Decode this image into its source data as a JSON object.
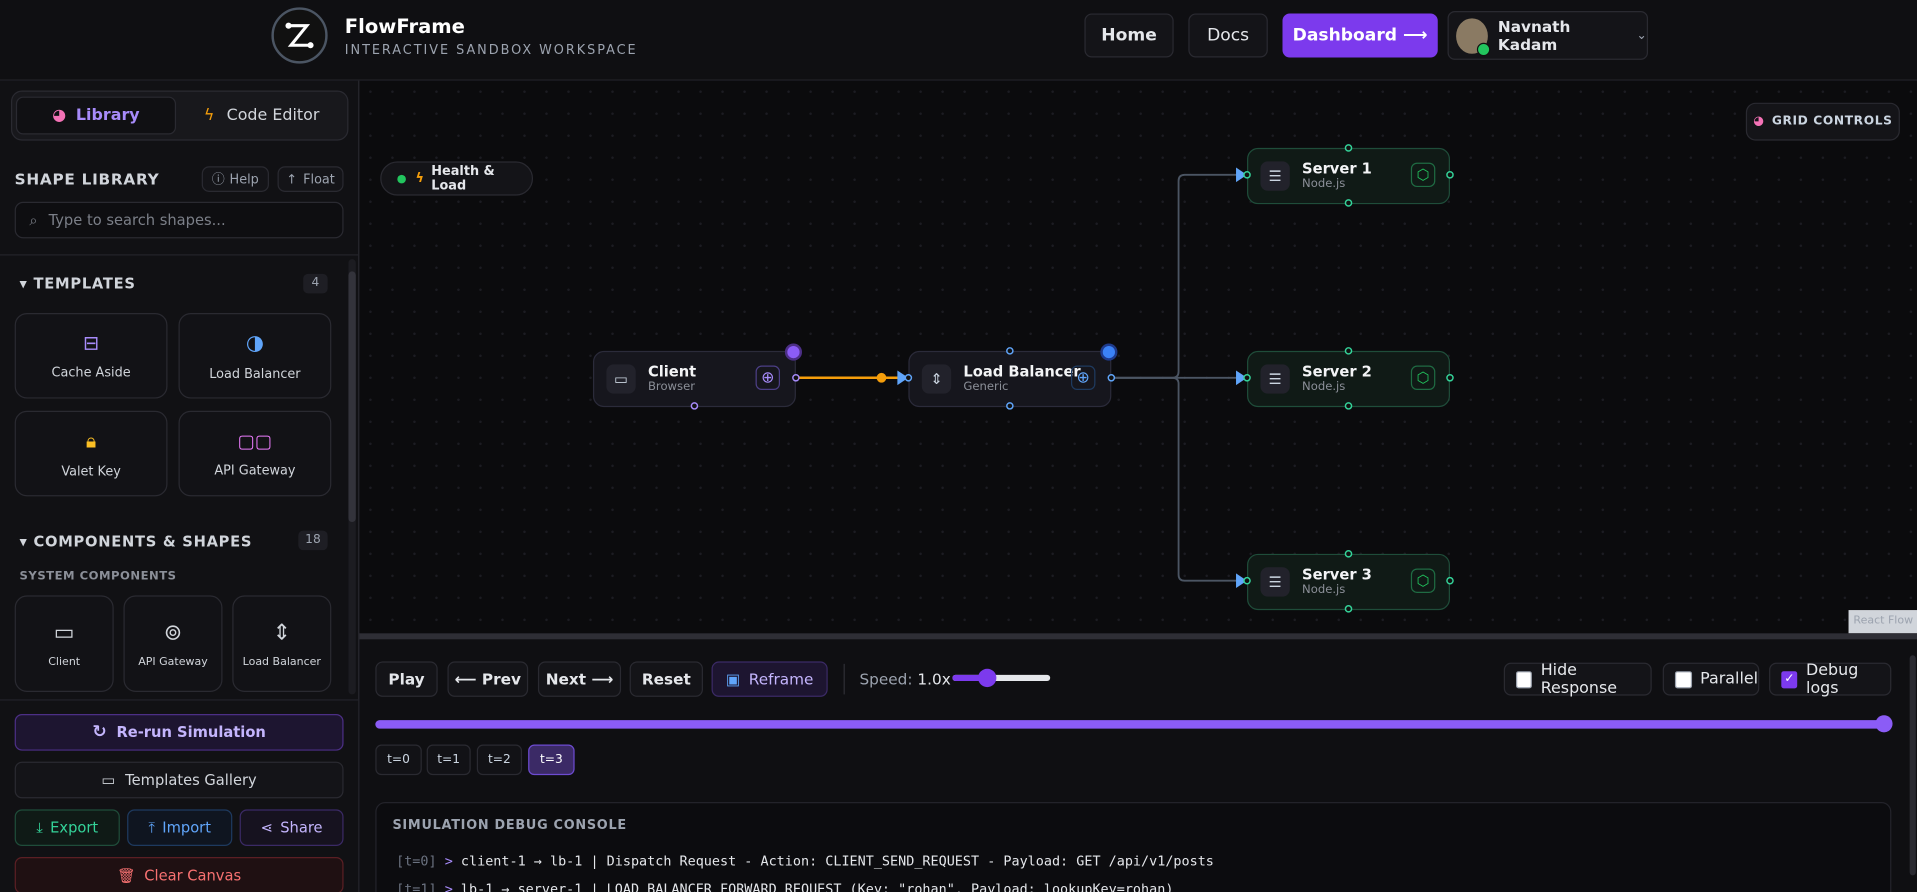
{
  "header": {
    "brand": "FlowFrame",
    "tagline": "INTERACTIVE SANDBOX WORKSPACE",
    "nav": [
      "Home",
      "Docs",
      "Dashboard ⟶"
    ],
    "user": "Navnath Kadam"
  },
  "sidebar": {
    "tabs": [
      "Library",
      "Code Editor"
    ],
    "title": "SHAPE LIBRARY",
    "actions": [
      "Help",
      "Float"
    ],
    "search_placeholder": "Type to search shapes...",
    "templates": {
      "title": "TEMPLATES",
      "count": 4,
      "items": [
        "Cache Aside",
        "Load Balancer",
        "Valet Key",
        "API Gateway"
      ]
    },
    "components": {
      "title": "COMPONENTS & SHAPES",
      "count": 18,
      "group": "SYSTEM COMPONENTS",
      "items": [
        "Client",
        "API Gateway",
        "Load Balancer"
      ]
    },
    "buttons": {
      "rerun": "Re-run Simulation",
      "gallery": "Templates Gallery",
      "export": "Export",
      "import": "Import",
      "share": "Share",
      "clear": "Clear Canvas"
    }
  },
  "canvas": {
    "grid_controls": "GRID CONTROLS",
    "status": "Health & Load",
    "nodes": [
      {
        "label": "Client",
        "sub": "Browser"
      },
      {
        "label": "Load Balancer",
        "sub": "Generic"
      },
      {
        "label": "Server 1",
        "sub": "Node.js"
      },
      {
        "label": "Server 2",
        "sub": "Node.js"
      },
      {
        "label": "Server 3",
        "sub": "Node.js"
      }
    ],
    "attribution": "React Flow"
  },
  "simulation": {
    "controls": [
      "Play",
      "⟵ Prev",
      "Next ⟶",
      "Reset",
      "Reframe"
    ],
    "speed_label": "Speed:",
    "speed": "1.0x",
    "options": [
      {
        "label": "Hide Response",
        "checked": false
      },
      {
        "label": "Parallel",
        "checked": false
      },
      {
        "label": "Debug logs",
        "checked": true
      }
    ],
    "steps": [
      "t=0",
      "t=1",
      "t=2",
      "t=3"
    ],
    "active_step": 3,
    "console": {
      "title": "SIMULATION DEBUG CONSOLE",
      "prompt": ">",
      "lines": [
        {
          "time": "[t=0]",
          "text": "client-1 → lb-1 | Dispatch Request - Action: CLIENT_SEND_REQUEST - Payload: GET /api/v1/posts"
        },
        {
          "time": "[t=1]",
          "text": "lb-1 → server-1 | LOAD_BALANCER_FORWARD_REQUEST (Key: \"rohan\", Payload: lookupKey=rohan)"
        }
      ]
    }
  }
}
